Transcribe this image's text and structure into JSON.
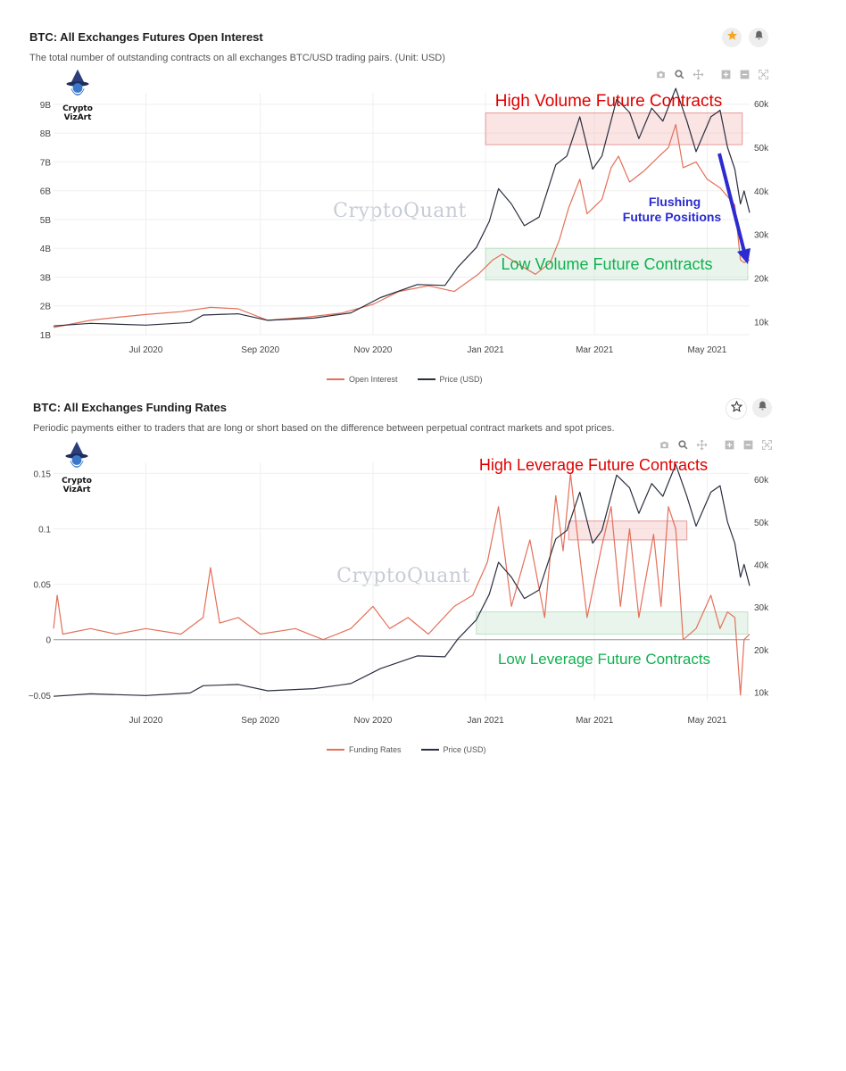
{
  "charts": [
    {
      "title": "BTC: All Exchanges Futures Open Interest",
      "subtitle": "The total number of outstanding contracts on all exchanges BTC/USD trading pairs. (Unit: USD)",
      "watermark": "CryptoQuant",
      "logo_lines": [
        "Crypto",
        "VizArt"
      ],
      "legend": [
        "Open Interest",
        "Price (USD)"
      ]
    },
    {
      "title": "BTC: All Exchanges Funding Rates",
      "subtitle": "Periodic payments either to traders that are long or short based on the difference between perpetual contract markets and spot prices.",
      "watermark": "CryptoQuant",
      "logo_lines": [
        "Crypto",
        "VizArt"
      ],
      "legend": [
        "Funding Rates",
        "Price (USD)"
      ]
    }
  ],
  "icons": {
    "toolbar": [
      "camera-icon",
      "zoom-icon",
      "pan-icon",
      "zoom-in-icon",
      "zoom-out-icon",
      "autoscale-icon"
    ],
    "panel1_buttons": [
      "star-filled-icon",
      "bell-icon"
    ],
    "panel2_buttons": [
      "star-outline-icon",
      "bell-icon"
    ]
  },
  "colors": {
    "series_primary": "#e3705a",
    "series_price": "#2b2f3e",
    "high_zone": "#f3c4c4",
    "low_zone": "#cfe9d4",
    "annotation_red": "#e00000",
    "annotation_green": "#10b050",
    "annotation_blue": "#2b2bd0",
    "star_orange": "#f5a623"
  },
  "chart_data": [
    {
      "type": "line",
      "title": "BTC: All Exchanges Futures Open Interest",
      "x_range": [
        "2020-05-12",
        "2021-05-24"
      ],
      "x_ticks": [
        "Jul 2020",
        "Sep 2020",
        "Nov 2020",
        "Jan 2021",
        "Mar 2021",
        "May 2021"
      ],
      "y_left": {
        "ticks": [
          "1B",
          "2B",
          "3B",
          "4B",
          "5B",
          "6B",
          "7B",
          "8B",
          "9B"
        ],
        "range": [
          1,
          9.4
        ]
      },
      "y_right": {
        "ticks": [
          "10k",
          "20k",
          "30k",
          "40k",
          "50k",
          "60k"
        ],
        "range": [
          7,
          62.5
        ]
      },
      "grid": true,
      "legend_position": "bottom",
      "series": [
        {
          "name": "Open Interest",
          "axis": "left",
          "color": "#e3705a",
          "points": [
            [
              "2020-05-12",
              1.25
            ],
            [
              "2020-06-01",
              1.5
            ],
            [
              "2020-06-15",
              1.6
            ],
            [
              "2020-07-01",
              1.7
            ],
            [
              "2020-07-20",
              1.8
            ],
            [
              "2020-08-05",
              1.95
            ],
            [
              "2020-08-20",
              1.9
            ],
            [
              "2020-09-05",
              1.5
            ],
            [
              "2020-09-25",
              1.6
            ],
            [
              "2020-10-15",
              1.75
            ],
            [
              "2020-11-01",
              2.05
            ],
            [
              "2020-11-15",
              2.5
            ],
            [
              "2020-12-01",
              2.7
            ],
            [
              "2020-12-15",
              2.5
            ],
            [
              "2020-12-28",
              3.1
            ],
            [
              "2021-01-05",
              3.6
            ],
            [
              "2021-01-10",
              3.8
            ],
            [
              "2021-01-20",
              3.4
            ],
            [
              "2021-01-28",
              3.1
            ],
            [
              "2021-02-05",
              3.5
            ],
            [
              "2021-02-10",
              4.3
            ],
            [
              "2021-02-15",
              5.4
            ],
            [
              "2021-02-21",
              6.4
            ],
            [
              "2021-02-25",
              5.2
            ],
            [
              "2021-03-05",
              5.7
            ],
            [
              "2021-03-10",
              6.8
            ],
            [
              "2021-03-14",
              7.2
            ],
            [
              "2021-03-20",
              6.3
            ],
            [
              "2021-03-28",
              6.7
            ],
            [
              "2021-04-05",
              7.2
            ],
            [
              "2021-04-10",
              7.5
            ],
            [
              "2021-04-14",
              8.3
            ],
            [
              "2021-04-18",
              6.8
            ],
            [
              "2021-04-25",
              7.0
            ],
            [
              "2021-05-01",
              6.4
            ],
            [
              "2021-05-08",
              6.1
            ],
            [
              "2021-05-12",
              5.8
            ],
            [
              "2021-05-16",
              5.5
            ],
            [
              "2021-05-19",
              3.6
            ],
            [
              "2021-05-21",
              3.5
            ],
            [
              "2021-05-24",
              3.6
            ]
          ]
        },
        {
          "name": "Price (USD)",
          "axis": "right",
          "color": "#2b2f3e",
          "points": [
            [
              "2020-05-12",
              9000
            ],
            [
              "2020-06-01",
              9600
            ],
            [
              "2020-07-01",
              9200
            ],
            [
              "2020-07-25",
              9800
            ],
            [
              "2020-08-01",
              11500
            ],
            [
              "2020-08-20",
              11800
            ],
            [
              "2020-09-05",
              10300
            ],
            [
              "2020-09-30",
              10800
            ],
            [
              "2020-10-20",
              12000
            ],
            [
              "2020-11-05",
              15500
            ],
            [
              "2020-11-25",
              18500
            ],
            [
              "2020-12-10",
              18300
            ],
            [
              "2020-12-17",
              22500
            ],
            [
              "2020-12-27",
              27000
            ],
            [
              "2021-01-03",
              33000
            ],
            [
              "2021-01-08",
              40500
            ],
            [
              "2021-01-15",
              37000
            ],
            [
              "2021-01-22",
              32000
            ],
            [
              "2021-01-30",
              34000
            ],
            [
              "2021-02-08",
              46000
            ],
            [
              "2021-02-14",
              48000
            ],
            [
              "2021-02-21",
              57000
            ],
            [
              "2021-02-28",
              45000
            ],
            [
              "2021-03-05",
              48000
            ],
            [
              "2021-03-13",
              61000
            ],
            [
              "2021-03-20",
              58000
            ],
            [
              "2021-03-25",
              52000
            ],
            [
              "2021-04-01",
              59000
            ],
            [
              "2021-04-07",
              56000
            ],
            [
              "2021-04-14",
              63500
            ],
            [
              "2021-04-20",
              56000
            ],
            [
              "2021-04-25",
              49000
            ],
            [
              "2021-05-03",
              57000
            ],
            [
              "2021-05-08",
              58500
            ],
            [
              "2021-05-12",
              50000
            ],
            [
              "2021-05-16",
              45000
            ],
            [
              "2021-05-19",
              37000
            ],
            [
              "2021-05-21",
              40000
            ],
            [
              "2021-05-24",
              35000
            ]
          ]
        }
      ],
      "annotations": [
        {
          "text": "High Volume Future Contracts",
          "color": "#e00000"
        },
        {
          "text": "Low Volume Future Contracts",
          "color": "#10b050"
        },
        {
          "text": "Flushing",
          "color": "#2b2bd0"
        },
        {
          "text": "Future Positions",
          "color": "#2b2bd0"
        }
      ],
      "zones": [
        {
          "kind": "high",
          "x": [
            "2021-01-01",
            "2021-05-20"
          ],
          "y_left": [
            7.6,
            8.7
          ]
        },
        {
          "kind": "low",
          "x": [
            "2021-01-01",
            "2021-05-23"
          ],
          "y_left": [
            2.9,
            4.0
          ]
        }
      ]
    },
    {
      "type": "line",
      "title": "BTC: All Exchanges Funding Rates",
      "x_range": [
        "2020-05-12",
        "2021-05-24"
      ],
      "x_ticks": [
        "Jul 2020",
        "Sep 2020",
        "Nov 2020",
        "Jan 2021",
        "Mar 2021",
        "May 2021"
      ],
      "y_left": {
        "ticks": [
          "−0.05",
          "0",
          "0.05",
          "0.1",
          "0.15"
        ],
        "range": [
          -0.055,
          0.16
        ]
      },
      "y_right": {
        "ticks": [
          "10k",
          "20k",
          "30k",
          "40k",
          "50k",
          "60k"
        ],
        "range": [
          8,
          64
        ]
      },
      "grid": true,
      "legend_position": "bottom",
      "series": [
        {
          "name": "Funding Rates",
          "axis": "left",
          "color": "#e3705a",
          "points": [
            [
              "2020-05-12",
              0.01
            ],
            [
              "2020-05-14",
              0.04
            ],
            [
              "2020-05-17",
              0.005
            ],
            [
              "2020-06-01",
              0.01
            ],
            [
              "2020-06-15",
              0.005
            ],
            [
              "2020-07-01",
              0.01
            ],
            [
              "2020-07-20",
              0.005
            ],
            [
              "2020-08-01",
              0.02
            ],
            [
              "2020-08-05",
              0.065
            ],
            [
              "2020-08-10",
              0.015
            ],
            [
              "2020-08-20",
              0.02
            ],
            [
              "2020-09-01",
              0.005
            ],
            [
              "2020-09-20",
              0.01
            ],
            [
              "2020-10-05",
              0.0
            ],
            [
              "2020-10-20",
              0.01
            ],
            [
              "2020-11-01",
              0.03
            ],
            [
              "2020-11-10",
              0.01
            ],
            [
              "2020-11-20",
              0.02
            ],
            [
              "2020-12-01",
              0.005
            ],
            [
              "2020-12-15",
              0.03
            ],
            [
              "2020-12-25",
              0.04
            ],
            [
              "2021-01-02",
              0.07
            ],
            [
              "2021-01-08",
              0.12
            ],
            [
              "2021-01-15",
              0.03
            ],
            [
              "2021-01-25",
              0.09
            ],
            [
              "2021-02-02",
              0.02
            ],
            [
              "2021-02-08",
              0.13
            ],
            [
              "2021-02-12",
              0.08
            ],
            [
              "2021-02-16",
              0.15
            ],
            [
              "2021-02-20",
              0.09
            ],
            [
              "2021-02-25",
              0.02
            ],
            [
              "2021-03-05",
              0.085
            ],
            [
              "2021-03-10",
              0.12
            ],
            [
              "2021-03-15",
              0.03
            ],
            [
              "2021-03-20",
              0.1
            ],
            [
              "2021-03-25",
              0.02
            ],
            [
              "2021-04-02",
              0.095
            ],
            [
              "2021-04-06",
              0.03
            ],
            [
              "2021-04-10",
              0.12
            ],
            [
              "2021-04-14",
              0.1
            ],
            [
              "2021-04-18",
              0.0
            ],
            [
              "2021-04-25",
              0.01
            ],
            [
              "2021-05-03",
              0.04
            ],
            [
              "2021-05-08",
              0.01
            ],
            [
              "2021-05-12",
              0.025
            ],
            [
              "2021-05-16",
              0.02
            ],
            [
              "2021-05-19",
              -0.05
            ],
            [
              "2021-05-21",
              0.0
            ],
            [
              "2021-05-24",
              0.005
            ]
          ]
        },
        {
          "name": "Price (USD)",
          "axis": "right",
          "color": "#2b2f3e",
          "points": [
            [
              "2020-05-12",
              9000
            ],
            [
              "2020-06-01",
              9600
            ],
            [
              "2020-07-01",
              9200
            ],
            [
              "2020-07-25",
              9800
            ],
            [
              "2020-08-01",
              11500
            ],
            [
              "2020-08-20",
              11800
            ],
            [
              "2020-09-05",
              10300
            ],
            [
              "2020-09-30",
              10800
            ],
            [
              "2020-10-20",
              12000
            ],
            [
              "2020-11-05",
              15500
            ],
            [
              "2020-11-25",
              18500
            ],
            [
              "2020-12-10",
              18300
            ],
            [
              "2020-12-17",
              22500
            ],
            [
              "2020-12-27",
              27000
            ],
            [
              "2021-01-03",
              33000
            ],
            [
              "2021-01-08",
              40500
            ],
            [
              "2021-01-15",
              37000
            ],
            [
              "2021-01-22",
              32000
            ],
            [
              "2021-01-30",
              34000
            ],
            [
              "2021-02-08",
              46000
            ],
            [
              "2021-02-14",
              48000
            ],
            [
              "2021-02-21",
              57000
            ],
            [
              "2021-02-28",
              45000
            ],
            [
              "2021-03-05",
              48000
            ],
            [
              "2021-03-13",
              61000
            ],
            [
              "2021-03-20",
              58000
            ],
            [
              "2021-03-25",
              52000
            ],
            [
              "2021-04-01",
              59000
            ],
            [
              "2021-04-07",
              56000
            ],
            [
              "2021-04-14",
              63500
            ],
            [
              "2021-04-20",
              56000
            ],
            [
              "2021-04-25",
              49000
            ],
            [
              "2021-05-03",
              57000
            ],
            [
              "2021-05-08",
              58500
            ],
            [
              "2021-05-12",
              50000
            ],
            [
              "2021-05-16",
              45000
            ],
            [
              "2021-05-19",
              37000
            ],
            [
              "2021-05-21",
              40000
            ],
            [
              "2021-05-24",
              35000
            ]
          ]
        }
      ],
      "annotations": [
        {
          "text": "High Leverage Future Contracts",
          "color": "#e00000"
        },
        {
          "text": "Low Leverage Future Contracts",
          "color": "#10b050"
        }
      ],
      "zones": [
        {
          "kind": "high",
          "x": [
            "2021-02-15",
            "2021-04-20"
          ],
          "y_left": [
            0.09,
            0.107
          ]
        },
        {
          "kind": "low",
          "x": [
            "2020-12-27",
            "2021-05-23"
          ],
          "y_left": [
            0.005,
            0.025
          ]
        }
      ]
    }
  ]
}
